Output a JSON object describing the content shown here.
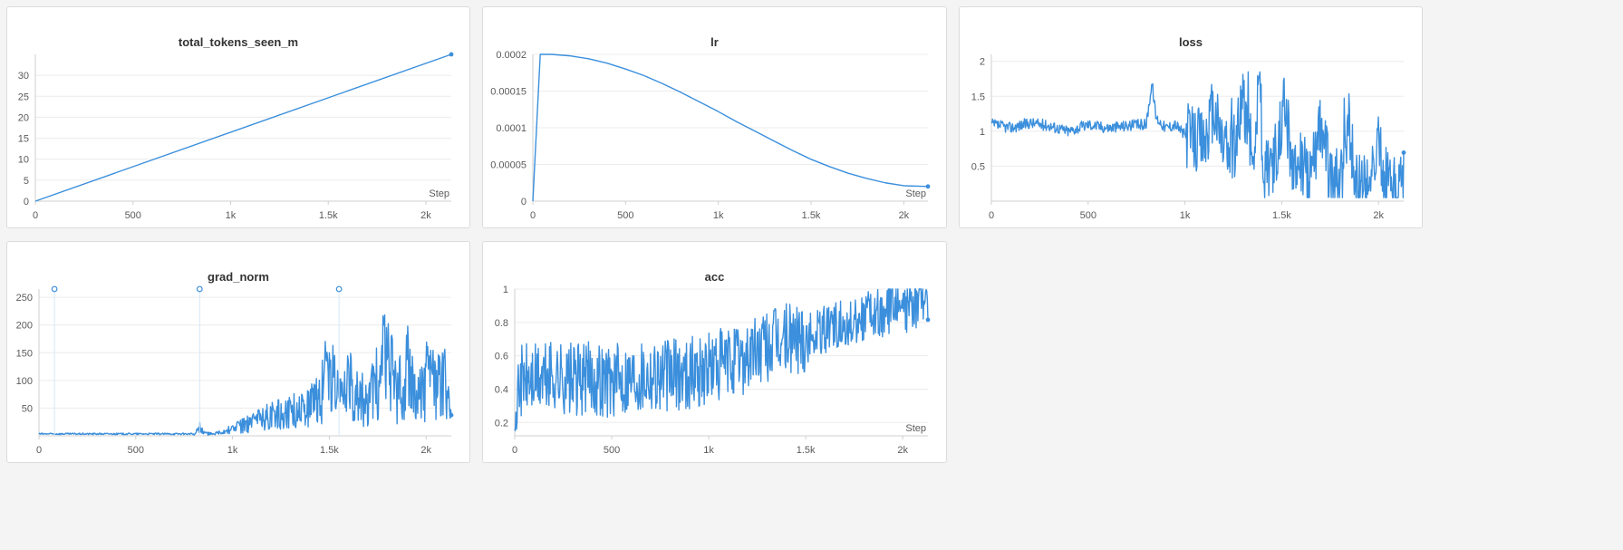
{
  "chart_data": [
    {
      "id": "tokens",
      "type": "line",
      "title": "total_tokens_seen_m",
      "xlabel": "Step",
      "color": "#3b8fdc",
      "xlim": [
        0,
        2130
      ],
      "ylim": [
        0,
        35
      ],
      "xticks": [
        {
          "v": 0,
          "label": "0"
        },
        {
          "v": 500,
          "label": "500"
        },
        {
          "v": 1000,
          "label": "1k"
        },
        {
          "v": 1500,
          "label": "1.5k"
        },
        {
          "v": 2000,
          "label": "2k"
        }
      ],
      "yticks": [
        {
          "v": 0,
          "label": "0"
        },
        {
          "v": 5,
          "label": "5"
        },
        {
          "v": 10,
          "label": "10"
        },
        {
          "v": 15,
          "label": "15"
        },
        {
          "v": 20,
          "label": "20"
        },
        {
          "v": 25,
          "label": "25"
        },
        {
          "v": 30,
          "label": "30"
        }
      ],
      "series": [
        {
          "x": [
            0,
            2130
          ],
          "y": [
            0,
            35
          ]
        }
      ]
    },
    {
      "id": "lr",
      "type": "line",
      "title": "lr",
      "xlabel": "Step",
      "color": "#3b8fdc",
      "xlim": [
        0,
        2130
      ],
      "ylim": [
        0,
        0.0002
      ],
      "xticks": [
        {
          "v": 0,
          "label": "0"
        },
        {
          "v": 500,
          "label": "500"
        },
        {
          "v": 1000,
          "label": "1k"
        },
        {
          "v": 1500,
          "label": "1.5k"
        },
        {
          "v": 2000,
          "label": "2k"
        }
      ],
      "yticks": [
        {
          "v": 0,
          "label": "0"
        },
        {
          "v": 5e-05,
          "label": "0.00005"
        },
        {
          "v": 0.0001,
          "label": "0.0001"
        },
        {
          "v": 0.00015,
          "label": "0.00015"
        },
        {
          "v": 0.0002,
          "label": "0.0002"
        }
      ],
      "series": [
        {
          "x": [
            0,
            40,
            100,
            200,
            300,
            400,
            500,
            600,
            700,
            800,
            900,
            1000,
            1100,
            1200,
            1300,
            1400,
            1500,
            1600,
            1700,
            1800,
            1900,
            2000,
            2130
          ],
          "y": [
            0,
            0.0002,
            0.0002,
            0.000198,
            0.000194,
            0.000188,
            0.00018,
            0.000171,
            0.00016,
            0.000148,
            0.000135,
            0.000122,
            0.000108,
            9.5e-05,
            8.2e-05,
            6.9e-05,
            5.7e-05,
            4.7e-05,
            3.8e-05,
            3.1e-05,
            2.5e-05,
            2.1e-05,
            2e-05
          ]
        }
      ]
    },
    {
      "id": "loss",
      "type": "line",
      "title": "loss",
      "xlabel": "",
      "color": "#3b8fdc",
      "xlim": [
        0,
        2130
      ],
      "ylim": [
        0,
        2.1
      ],
      "xticks": [
        {
          "v": 0,
          "label": "0"
        },
        {
          "v": 500,
          "label": "500"
        },
        {
          "v": 1000,
          "label": "1k"
        },
        {
          "v": 1500,
          "label": "1.5k"
        },
        {
          "v": 2000,
          "label": "2k"
        }
      ],
      "yticks": [
        {
          "v": 0.5,
          "label": "0.5"
        },
        {
          "v": 1,
          "label": "1"
        },
        {
          "v": 1.5,
          "label": "1.5"
        },
        {
          "v": 2,
          "label": "2"
        }
      ],
      "series": [
        {
          "x": [
            0,
            100,
            200,
            300,
            400,
            500,
            600,
            700,
            800,
            830,
            850,
            900,
            950,
            1000,
            1050,
            1100,
            1150,
            1200,
            1250,
            1300,
            1350,
            1390,
            1400,
            1450,
            1500,
            1510,
            1550,
            1600,
            1650,
            1700,
            1750,
            1800,
            1850,
            1900,
            1950,
            2000,
            2050,
            2100,
            2130
          ],
          "y": [
            1.1,
            1.05,
            1.12,
            1.08,
            1.0,
            1.1,
            1.05,
            1.08,
            1.1,
            1.7,
            1.2,
            1.05,
            1.1,
            0.95,
            0.9,
            0.85,
            1.3,
            0.8,
            0.7,
            1.5,
            0.6,
            1.8,
            0.5,
            0.45,
            1.1,
            1.8,
            0.4,
            0.6,
            0.3,
            1.2,
            0.3,
            0.25,
            0.9,
            0.2,
            0.15,
            0.8,
            0.2,
            0.1,
            0.3
          ]
        }
      ]
    },
    {
      "id": "grad",
      "type": "line",
      "title": "grad_norm",
      "xlabel": "",
      "color": "#3b8fdc",
      "xlim": [
        0,
        2130
      ],
      "ylim": [
        0,
        265
      ],
      "xticks": [
        {
          "v": 0,
          "label": "0"
        },
        {
          "v": 500,
          "label": "500"
        },
        {
          "v": 1000,
          "label": "1k"
        },
        {
          "v": 1500,
          "label": "1.5k"
        },
        {
          "v": 2000,
          "label": "2k"
        }
      ],
      "yticks": [
        {
          "v": 50,
          "label": "50"
        },
        {
          "v": 100,
          "label": "100"
        },
        {
          "v": 150,
          "label": "150"
        },
        {
          "v": 200,
          "label": "200"
        },
        {
          "v": 250,
          "label": "250"
        }
      ],
      "series": [
        {
          "x": [
            0,
            100,
            200,
            300,
            400,
            500,
            600,
            700,
            800,
            830,
            850,
            900,
            1000,
            1100,
            1200,
            1300,
            1400,
            1450,
            1480,
            1500,
            1550,
            1600,
            1650,
            1700,
            1750,
            1800,
            1850,
            1900,
            1950,
            2000,
            2050,
            2100,
            2130
          ],
          "y": [
            3,
            2,
            2,
            2,
            2,
            2,
            2,
            2,
            2,
            25,
            8,
            5,
            20,
            40,
            60,
            70,
            90,
            110,
            170,
            200,
            100,
            150,
            130,
            80,
            190,
            230,
            120,
            210,
            90,
            170,
            140,
            150,
            70
          ]
        }
      ],
      "outliers_x": [
        80,
        830,
        1550
      ]
    },
    {
      "id": "acc",
      "type": "line",
      "title": "acc",
      "xlabel": "Step",
      "color": "#3b8fdc",
      "xlim": [
        0,
        2130
      ],
      "ylim": [
        0.12,
        1.0
      ],
      "xticks": [
        {
          "v": 0,
          "label": "0"
        },
        {
          "v": 500,
          "label": "500"
        },
        {
          "v": 1000,
          "label": "1k"
        },
        {
          "v": 1500,
          "label": "1.5k"
        },
        {
          "v": 2000,
          "label": "2k"
        }
      ],
      "yticks": [
        {
          "v": 0.2,
          "label": "0.2"
        },
        {
          "v": 0.4,
          "label": "0.4"
        },
        {
          "v": 0.6,
          "label": "0.6"
        },
        {
          "v": 0.8,
          "label": "0.8"
        },
        {
          "v": 1,
          "label": "1"
        }
      ],
      "series": [
        {
          "x": [
            0,
            20,
            100,
            200,
            300,
            400,
            500,
            600,
            700,
            800,
            900,
            1000,
            1100,
            1200,
            1300,
            1400,
            1500,
            1600,
            1700,
            1800,
            1900,
            2000,
            2100,
            2130
          ],
          "y": [
            0.15,
            0.45,
            0.45,
            0.48,
            0.45,
            0.47,
            0.45,
            0.48,
            0.5,
            0.48,
            0.5,
            0.52,
            0.55,
            0.6,
            0.65,
            0.7,
            0.72,
            0.78,
            0.82,
            0.85,
            0.88,
            0.9,
            0.92,
            0.94
          ]
        }
      ]
    }
  ]
}
